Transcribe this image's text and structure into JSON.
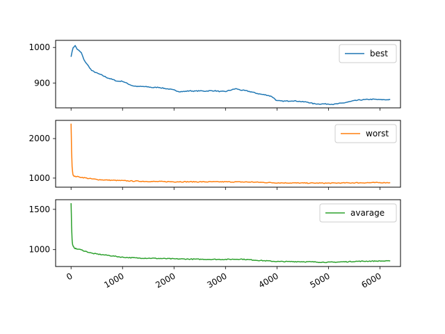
{
  "chart_data": [
    {
      "type": "line",
      "title": "",
      "xlabel": "",
      "ylabel": "",
      "xlim": [
        -300,
        6400
      ],
      "ylim": [
        830,
        1020
      ],
      "yticks": [
        900,
        1000
      ],
      "ytick_labels": [
        "900",
        "1000"
      ],
      "grid": false,
      "legend_position": "top-right",
      "series": [
        {
          "name": "best",
          "color": "#1f77b4",
          "x": [
            0,
            40,
            80,
            120,
            200,
            250,
            300,
            400,
            500,
            600,
            700,
            800,
            900,
            1000,
            1100,
            1200,
            1300,
            1400,
            1500,
            1600,
            1700,
            1800,
            1900,
            2000,
            2100,
            2200,
            2300,
            2400,
            2500,
            2600,
            2700,
            2800,
            2900,
            3000,
            3100,
            3200,
            3300,
            3400,
            3500,
            3600,
            3700,
            3800,
            3900,
            4000,
            4100,
            4200,
            4300,
            4400,
            4500,
            4600,
            4700,
            4800,
            4900,
            5000,
            5100,
            5200,
            5300,
            5400,
            5500,
            5600,
            5700,
            5800,
            5900,
            6000,
            6100,
            6200
          ],
          "values": [
            975,
            1000,
            1005,
            995,
            985,
            965,
            955,
            935,
            928,
            922,
            915,
            910,
            905,
            905,
            898,
            892,
            890,
            890,
            889,
            887,
            888,
            885,
            883,
            880,
            876,
            876,
            878,
            877,
            878,
            877,
            878,
            878,
            876,
            876,
            880,
            884,
            880,
            878,
            875,
            871,
            868,
            866,
            862,
            850,
            849,
            849,
            850,
            849,
            847,
            846,
            842,
            841,
            841,
            841,
            840,
            842,
            844,
            847,
            850,
            852,
            853,
            854,
            854,
            853,
            853,
            853
          ]
        }
      ]
    },
    {
      "type": "line",
      "title": "",
      "xlabel": "",
      "ylabel": "",
      "xlim": [
        -300,
        6400
      ],
      "ylim": [
        770,
        2460
      ],
      "yticks": [
        1000,
        2000
      ],
      "ytick_labels": [
        "1000",
        "2000"
      ],
      "grid": false,
      "legend_position": "top-right",
      "series": [
        {
          "name": "worst",
          "color": "#ff7f0e",
          "x": [
            0,
            10,
            20,
            30,
            40,
            60,
            80,
            100,
            150,
            200,
            300,
            400,
            500,
            600,
            800,
            1000,
            1200,
            1500,
            2000,
            2500,
            3000,
            3500,
            4000,
            4500,
            5000,
            5500,
            6000,
            6200
          ],
          "values": [
            2370,
            1700,
            1300,
            1150,
            1080,
            1050,
            1040,
            1040,
            1030,
            1020,
            1000,
            980,
            965,
            955,
            945,
            935,
            925,
            915,
            908,
            905,
            905,
            900,
            880,
            875,
            872,
            880,
            885,
            885
          ]
        }
      ]
    },
    {
      "type": "line",
      "title": "",
      "xlabel": "",
      "ylabel": "",
      "xlim": [
        -300,
        6400
      ],
      "ylim": [
        790,
        1620
      ],
      "yticks": [
        1000,
        1500
      ],
      "ytick_labels": [
        "1000",
        "1500"
      ],
      "grid": false,
      "legend_position": "top-right",
      "xticks": [
        0,
        1000,
        2000,
        3000,
        4000,
        5000,
        6000
      ],
      "xtick_labels": [
        "0",
        "1000",
        "2000",
        "3000",
        "4000",
        "5000",
        "6000"
      ],
      "series": [
        {
          "name": "avarage",
          "color": "#2ca02c",
          "x": [
            0,
            10,
            20,
            30,
            40,
            60,
            80,
            100,
            150,
            200,
            300,
            400,
            500,
            700,
            1000,
            1300,
            1600,
            2000,
            2500,
            3000,
            3300,
            3600,
            4000,
            4500,
            5000,
            5300,
            5600,
            6000,
            6200
          ],
          "values": [
            1580,
            1300,
            1120,
            1060,
            1040,
            1025,
            1015,
            1010,
            1005,
            995,
            975,
            955,
            945,
            930,
            905,
            895,
            892,
            885,
            880,
            878,
            882,
            868,
            852,
            850,
            842,
            848,
            855,
            858,
            858
          ]
        }
      ]
    }
  ]
}
